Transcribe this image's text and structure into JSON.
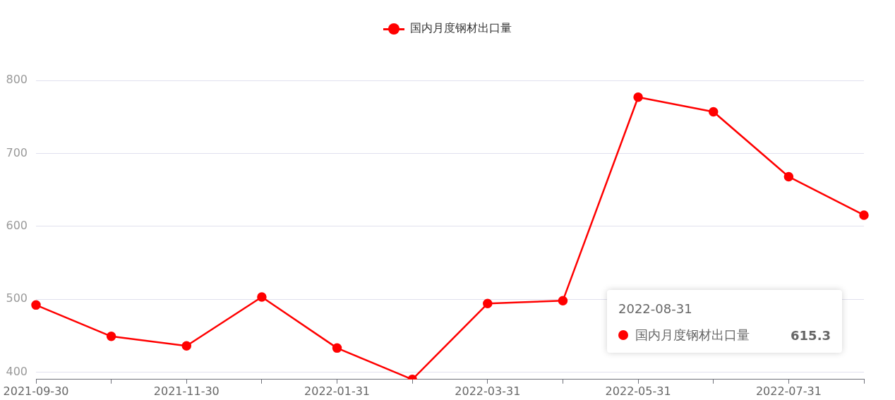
{
  "chart_data": {
    "type": "line",
    "categories": [
      "2021-09-30",
      null,
      "2021-11-30",
      null,
      "2022-01-31",
      null,
      "2022-03-31",
      null,
      "2022-05-31",
      null,
      "2022-07-31",
      null
    ],
    "series": [
      {
        "name": "国内月度钢材出口量",
        "color": "#ff0000",
        "values": [
          492,
          449,
          436,
          503,
          433,
          390,
          494,
          498,
          777,
          757,
          668,
          615.3
        ]
      }
    ],
    "ylim": [
      390,
      800
    ],
    "yticks": [
      400,
      500,
      600,
      700,
      800
    ],
    "grid": "y",
    "legend": "top",
    "marker": "circle",
    "line_style": "solid",
    "annotations": [
      "2022-08-31",
      "615.3"
    ]
  }
}
